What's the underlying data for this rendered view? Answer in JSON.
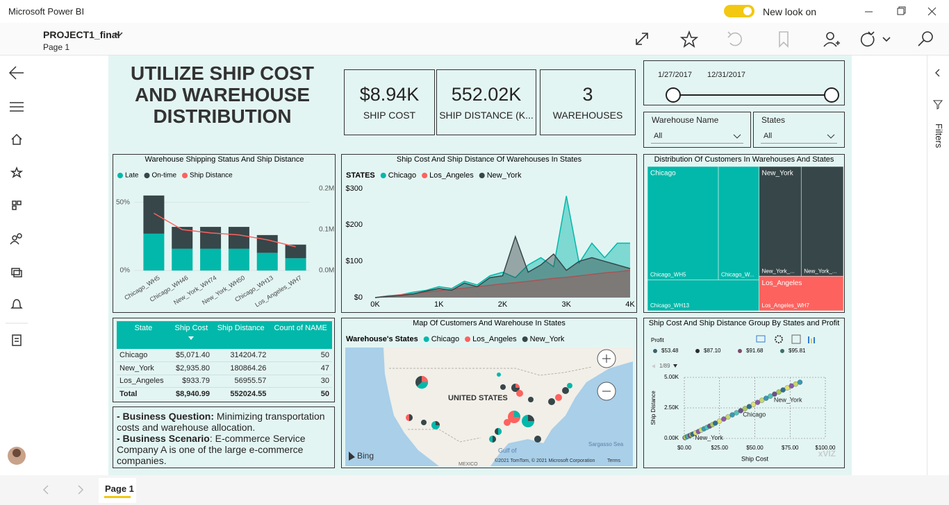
{
  "app": {
    "title": "Microsoft Power BI",
    "toggle_label": "New look on",
    "filters_pane": "Filters"
  },
  "report": {
    "name": "PROJECT1_final",
    "page": "Page 1",
    "tab": "Page 1"
  },
  "header": {
    "title_lines": [
      "UTILIZE SHIP COST",
      "AND WAREHOUSE",
      "DISTRIBUTION"
    ]
  },
  "cards": [
    {
      "value": "$8.94K",
      "label": "SHIP COST"
    },
    {
      "value": "552.02K",
      "label": "SHIP DISTANCE (K..."
    },
    {
      "value": "3",
      "label": "WAREHOUSES"
    }
  ],
  "date_slicer": {
    "start": "1/27/2017",
    "end": "12/31/2017"
  },
  "slicers": [
    {
      "label": "Warehouse Name",
      "value": "All"
    },
    {
      "label": "States",
      "value": "All"
    }
  ],
  "table": {
    "columns": [
      "State",
      "Ship Cost",
      "Ship Distance",
      "Count of NAME"
    ],
    "rows": [
      [
        "Chicago",
        "$5,071.40",
        "314204.72",
        "50"
      ],
      [
        "New_York",
        "$2,935.80",
        "180864.26",
        "47"
      ],
      [
        "Los_Angeles",
        "$933.79",
        "56955.57",
        "30"
      ]
    ],
    "total": [
      "Total",
      "$8,940.99",
      "552024.55",
      "50"
    ]
  },
  "notes": [
    {
      "term": "- Business Question:",
      "text": "Minimizing transportation costs and warehouse allocation."
    },
    {
      "term": "- Business Scenario",
      "text": ": E-commerce Service Company A is one of the large e-commerce companies."
    }
  ],
  "chart_data": [
    {
      "type": "bar",
      "title": "Warehouse Shipping Status And Ship Distance",
      "categories": [
        "Chicago_WH5",
        "Chicago_WH46",
        "New_York_WH74",
        "New_York_WH50",
        "Chicago_WH13",
        "Los_Angeles_WH7"
      ],
      "series": [
        {
          "name": "Late",
          "color": "#01b8aa",
          "values": [
            27,
            16,
            16,
            16,
            13,
            9
          ]
        },
        {
          "name": "On-time",
          "color": "#374649",
          "values": [
            28,
            16,
            16,
            16,
            13,
            10
          ]
        },
        {
          "name": "Ship Distance",
          "color": "#fd625e",
          "axis": "y2",
          "values": [
            140000,
            100000,
            92000,
            87000,
            75000,
            58000
          ]
        }
      ],
      "ylim": [
        0,
        60
      ],
      "yticks": [
        {
          "value": 0,
          "label": "0%"
        },
        {
          "value": 50,
          "label": "50%"
        }
      ],
      "y2lim": [
        0,
        200000
      ],
      "y2ticks": [
        {
          "value": 0,
          "label": "0.0M"
        },
        {
          "value": 100000,
          "label": "0.1M"
        },
        {
          "value": 200000,
          "label": "0.2M"
        }
      ],
      "grid": true
    },
    {
      "type": "area",
      "title": "Ship Cost And Ship Distance Of Warehouses In States",
      "legend_title": "STATES",
      "x": [
        0,
        200,
        400,
        600,
        800,
        1000,
        1200,
        1400,
        1600,
        1800,
        2000,
        2200,
        2400,
        2600,
        2800,
        3000,
        3200,
        3400,
        3600,
        3800,
        4000
      ],
      "series": [
        {
          "name": "Chicago",
          "color": "#01b8aa",
          "values": [
            0,
            5,
            8,
            15,
            20,
            30,
            25,
            45,
            35,
            60,
            70,
            55,
            90,
            110,
            85,
            280,
            95,
            150,
            110,
            150,
            150
          ]
        },
        {
          "name": "Los_Angeles",
          "color": "#fd625e",
          "values": [
            0,
            4,
            8,
            11,
            15,
            19,
            23,
            26,
            30,
            34,
            38,
            41,
            45,
            49,
            53,
            56,
            60,
            64,
            68,
            71,
            75
          ]
        },
        {
          "name": "New_York",
          "color": "#374649",
          "values": [
            0,
            3,
            6,
            10,
            18,
            25,
            20,
            40,
            30,
            55,
            60,
            168,
            70,
            90,
            120,
            75,
            100,
            110,
            100,
            90,
            80
          ]
        }
      ],
      "xlim": [
        0,
        4000
      ],
      "xticks": [
        {
          "value": 0,
          "label": "0K"
        },
        {
          "value": 1000,
          "label": "1K"
        },
        {
          "value": 2000,
          "label": "2K"
        },
        {
          "value": 3000,
          "label": "3K"
        },
        {
          "value": 4000,
          "label": "4K"
        }
      ],
      "ylim": [
        0,
        300
      ],
      "yticks": [
        {
          "value": 0,
          "label": "$0"
        },
        {
          "value": 100,
          "label": "$100"
        },
        {
          "value": 200,
          "label": "$200"
        },
        {
          "value": 300,
          "label": "$300"
        }
      ]
    },
    {
      "type": "treemap",
      "title": "Distribution Of Customers In Warehouses And States",
      "groups": [
        {
          "name": "Chicago",
          "color": "#01b8aa",
          "tiles": [
            [
              {
                "label": "Chicago_WH5",
                "value": 156900
              },
              {
                "label": "Chicago_W...",
                "value": 89900
              }
            ],
            [
              {
                "label": "Chicago_WH13",
                "value": 67300
              }
            ]
          ]
        },
        {
          "name": "New_York",
          "color": "#374649",
          "tiles": [
            [
              {
                "label": "New_York_...",
                "value": 90400
              },
              {
                "label": "New_York_...",
                "value": 90400
              }
            ]
          ]
        },
        {
          "name": "Los_Angeles",
          "color": "#fd625e",
          "tiles": [
            [
              {
                "label": "Los_Angeles_WH7",
                "value": 56900
              }
            ]
          ]
        }
      ]
    },
    {
      "type": "map",
      "title": "Map Of Customers And Warehouse In States",
      "legend_title": "Warehouse's States",
      "series": [
        {
          "name": "Chicago",
          "color": "#01b8aa"
        },
        {
          "name": "Los_Angeles",
          "color": "#fd625e"
        },
        {
          "name": "New_York",
          "color": "#374649"
        }
      ],
      "labels": {
        "country": "UNITED STATES",
        "gulf": "Gulf of",
        "mexico": "MEXICO",
        "sea": "Sargasso Sea",
        "provider": "Bing",
        "copyright": "©2021 TomTom, © 2021 Microsoft Corporation",
        "terms": "Terms"
      }
    },
    {
      "type": "scatter",
      "title": "Ship Cost And Ship Distance Group By States and Profit",
      "legend_title": "Profit",
      "legend": [
        {
          "name": "$53.48",
          "color": "#3b6070"
        },
        {
          "name": "$87.10",
          "color": "#2b2b2b"
        },
        {
          "name": "$91.68",
          "color": "#7a4a6a"
        },
        {
          "name": "$95.81",
          "color": "#3d6f6b"
        }
      ],
      "pager": "1/89",
      "x_label": "Ship Cost",
      "y_label": "Ship Distance",
      "x": [
        0.5,
        1,
        2,
        3,
        4,
        5,
        6,
        8,
        10,
        12,
        14,
        16,
        18,
        20,
        22,
        25,
        28,
        31,
        34,
        37,
        40,
        43,
        46,
        49,
        52,
        55,
        58,
        61,
        64,
        67,
        70,
        73,
        76,
        79,
        82
      ],
      "values": [
        60,
        90,
        140,
        190,
        240,
        300,
        350,
        460,
        560,
        680,
        790,
        900,
        1010,
        1130,
        1250,
        1420,
        1590,
        1760,
        1930,
        2100,
        2270,
        2440,
        2610,
        2780,
        2950,
        3120,
        3290,
        3460,
        3630,
        3800,
        3970,
        4140,
        4300,
        4450,
        4600
      ],
      "colors": [
        "#8a5aa8",
        "#c8d86a",
        "#3599b8",
        "#4ac5bb",
        "#6b4f8c",
        "#a9c95a",
        "#2f6f8a",
        "#e0e070"
      ],
      "annotations": [
        {
          "label": "New_York",
          "x": 62,
          "y": 3460
        },
        {
          "label": "Chicago",
          "x": 40,
          "y": 2270
        },
        {
          "label": "New_York",
          "x": 6,
          "y": 350
        }
      ],
      "xlim": [
        0,
        100
      ],
      "xticks": [
        {
          "value": 0,
          "label": "$0.00"
        },
        {
          "value": 25,
          "label": "$25.00"
        },
        {
          "value": 50,
          "label": "$50.00"
        },
        {
          "value": 75,
          "label": "$75.00"
        },
        {
          "value": 100,
          "label": "$100.00"
        }
      ],
      "ylim": [
        0,
        5000
      ],
      "yticks": [
        {
          "value": 0,
          "label": "0.00K"
        },
        {
          "value": 2500,
          "label": "2.50K"
        },
        {
          "value": 5000,
          "label": "5.00K"
        }
      ],
      "grid": true,
      "watermark": "xVIZ"
    }
  ]
}
